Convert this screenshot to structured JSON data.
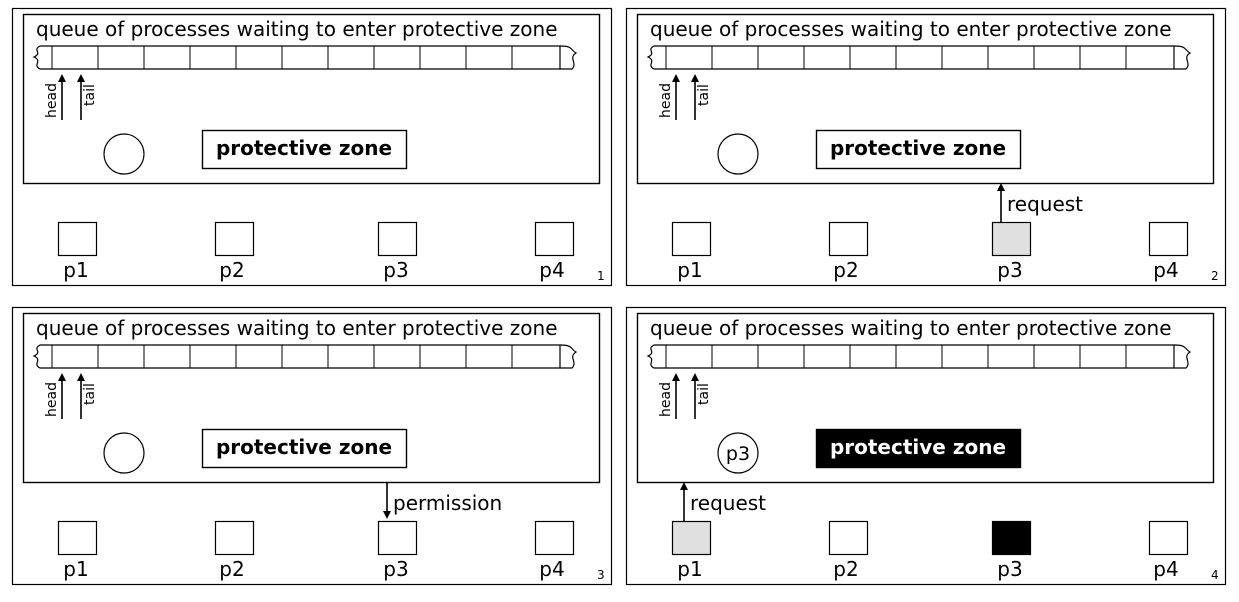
{
  "panels": [
    {
      "number": "1",
      "queue_title": "queue of processes waiting to enter protective zone",
      "head_label": "head",
      "tail_label": "tail",
      "zone_label": "protective zone",
      "zone_state": "free",
      "circle_label": "",
      "processes": [
        {
          "label": "p1",
          "state": "idle"
        },
        {
          "label": "p2",
          "state": "idle"
        },
        {
          "label": "p3",
          "state": "idle"
        },
        {
          "label": "p4",
          "state": "idle"
        }
      ],
      "message": null
    },
    {
      "number": "2",
      "queue_title": "queue of processes waiting to enter protective zone",
      "head_label": "head",
      "tail_label": "tail",
      "zone_label": "protective zone",
      "zone_state": "free",
      "circle_label": "",
      "processes": [
        {
          "label": "p1",
          "state": "idle"
        },
        {
          "label": "p2",
          "state": "idle"
        },
        {
          "label": "p3",
          "state": "requesting"
        },
        {
          "label": "p4",
          "state": "idle"
        }
      ],
      "message": {
        "text": "request",
        "process_index": 2,
        "direction": "up"
      }
    },
    {
      "number": "3",
      "queue_title": "queue of processes waiting to enter protective zone",
      "head_label": "head",
      "tail_label": "tail",
      "zone_label": "protective zone",
      "zone_state": "free",
      "circle_label": "",
      "processes": [
        {
          "label": "p1",
          "state": "idle"
        },
        {
          "label": "p2",
          "state": "idle"
        },
        {
          "label": "p3",
          "state": "idle"
        },
        {
          "label": "p4",
          "state": "idle"
        }
      ],
      "message": {
        "text": "permission",
        "process_index": 2,
        "direction": "down"
      }
    },
    {
      "number": "4",
      "queue_title": "queue of processes waiting to enter protective zone",
      "head_label": "head",
      "tail_label": "tail",
      "zone_label": "protective zone",
      "zone_state": "occupied",
      "circle_label": "p3",
      "processes": [
        {
          "label": "p1",
          "state": "requesting"
        },
        {
          "label": "p2",
          "state": "idle"
        },
        {
          "label": "p3",
          "state": "inside"
        },
        {
          "label": "p4",
          "state": "idle"
        }
      ],
      "message": {
        "text": "request",
        "process_index": 0,
        "direction": "up"
      }
    }
  ],
  "colors": {
    "stroke": "#000000",
    "background": "#ffffff",
    "requesting_fill": "#e0e0e0",
    "inside_fill": "#000000",
    "zone_occupied_fill": "#000000",
    "zone_occupied_text": "#ffffff"
  }
}
